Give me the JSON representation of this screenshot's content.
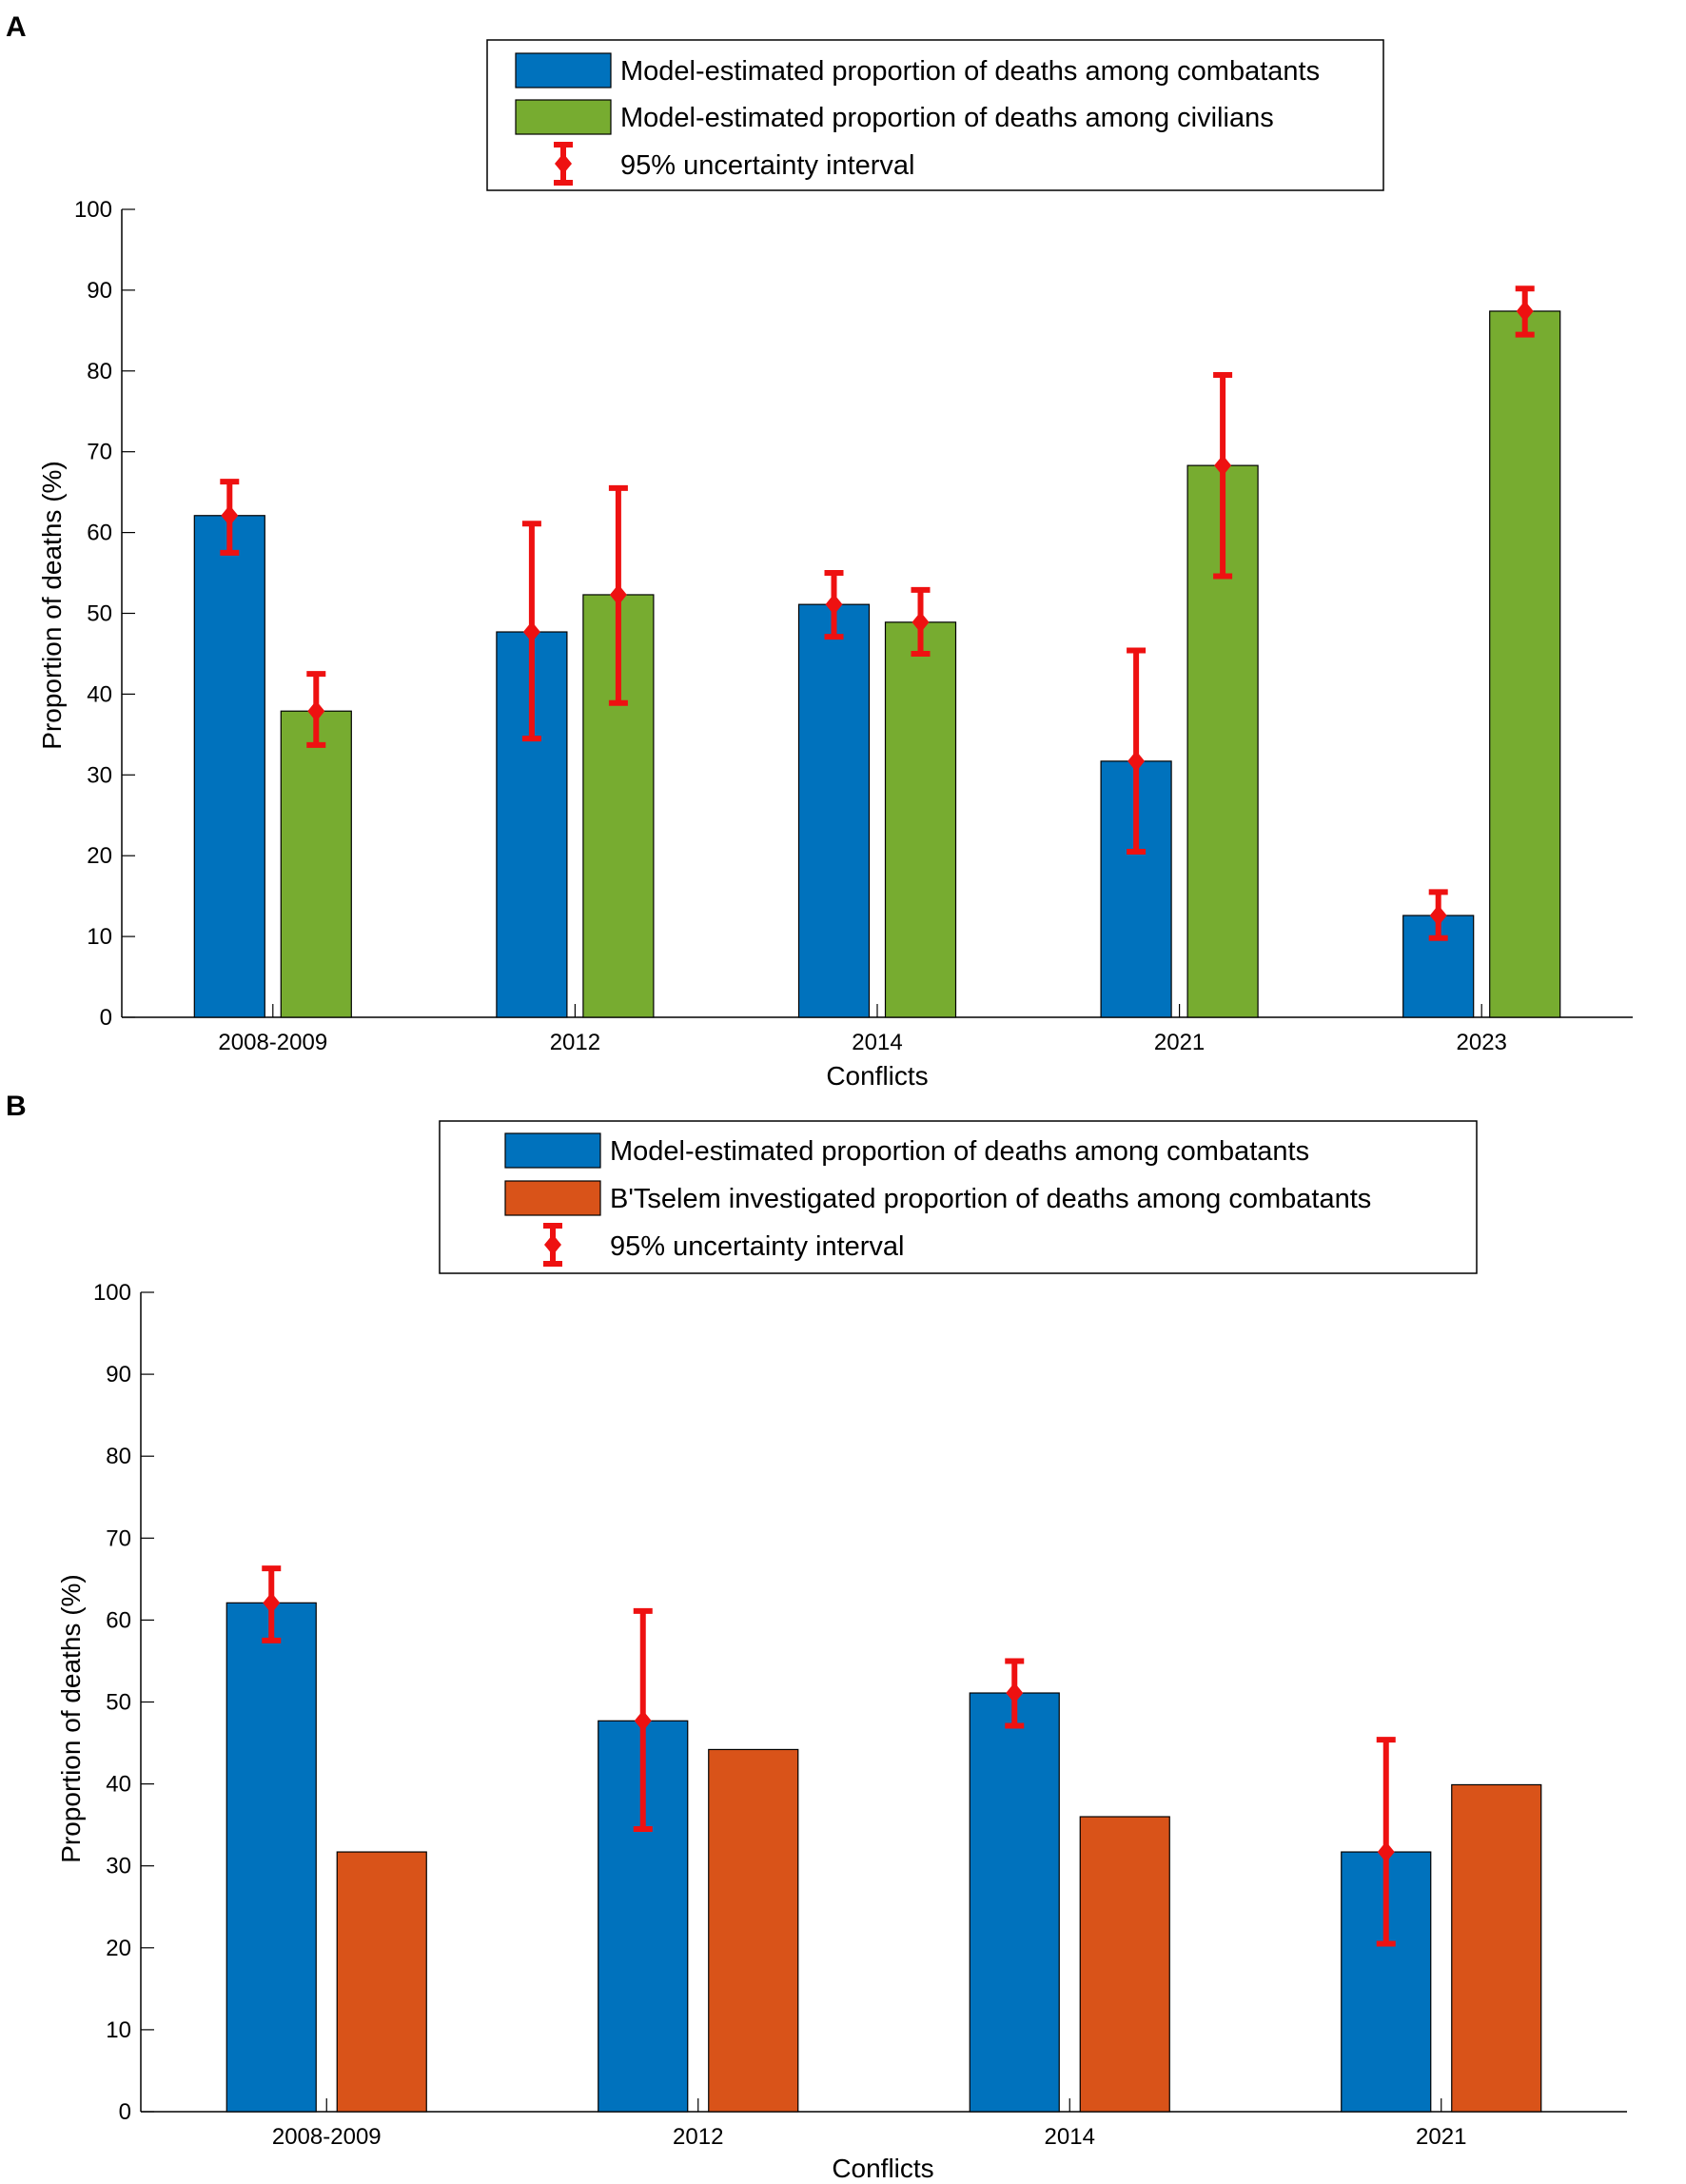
{
  "colors": {
    "combatants": "#0072BD",
    "civilians": "#77AC30",
    "btselem": "#D95319",
    "error": "#EE1111"
  },
  "chart_data": [
    {
      "panel": "A",
      "type": "bar",
      "categories": [
        "2008-2009",
        "2012",
        "2014",
        "2021",
        "2023"
      ],
      "series": [
        {
          "name": "Model-estimated proportion of deaths among combatants",
          "color_key": "combatants",
          "values": [
            62.1,
            47.7,
            51.1,
            31.7,
            12.6
          ],
          "ci": [
            [
              57.5,
              66.3
            ],
            [
              34.5,
              61.1
            ],
            [
              47.1,
              55.0
            ],
            [
              20.5,
              45.4
            ],
            [
              9.8,
              15.5
            ]
          ]
        },
        {
          "name": "Model-estimated proportion of deaths among civilians",
          "color_key": "civilians",
          "values": [
            37.9,
            52.3,
            48.9,
            68.3,
            87.4
          ],
          "ci": [
            [
              33.7,
              42.5
            ],
            [
              38.9,
              65.5
            ],
            [
              45.0,
              52.9
            ],
            [
              54.6,
              79.5
            ],
            [
              84.5,
              90.2
            ]
          ]
        }
      ],
      "legend": [
        "Model-estimated proportion of deaths among combatants",
        "Model-estimated proportion of deaths among civilians",
        "95% uncertainty interval"
      ],
      "xlabel": "Conflicts",
      "ylabel": "Proportion of deaths (%)",
      "ylim": [
        0,
        100
      ],
      "yticks": [
        "0",
        "10",
        "20",
        "30",
        "40",
        "50",
        "60",
        "70",
        "80",
        "90",
        "100"
      ],
      "legend_position": "top-center"
    },
    {
      "panel": "B",
      "type": "bar",
      "categories": [
        "2008-2009",
        "2012",
        "2014",
        "2021"
      ],
      "series": [
        {
          "name": "Model-estimated proportion of deaths among combatants",
          "color_key": "combatants",
          "values": [
            62.1,
            47.7,
            51.1,
            31.7
          ],
          "ci": [
            [
              57.5,
              66.3
            ],
            [
              34.5,
              61.1
            ],
            [
              47.1,
              55.0
            ],
            [
              20.5,
              45.4
            ]
          ]
        },
        {
          "name": "B'Tselem investigated proportion of deaths among combatants",
          "color_key": "btselem",
          "values": [
            31.7,
            44.2,
            36.0,
            39.9
          ],
          "ci": null
        }
      ],
      "legend": [
        "Model-estimated proportion of deaths among combatants",
        "B'Tselem investigated proportion of deaths among combatants",
        "95% uncertainty interval"
      ],
      "xlabel": "Conflicts",
      "ylabel": "Proportion of deaths (%)",
      "ylim": [
        0,
        100
      ],
      "yticks": [
        "0",
        "10",
        "20",
        "30",
        "40",
        "50",
        "60",
        "70",
        "80",
        "90",
        "100"
      ],
      "legend_position": "top-center"
    }
  ]
}
